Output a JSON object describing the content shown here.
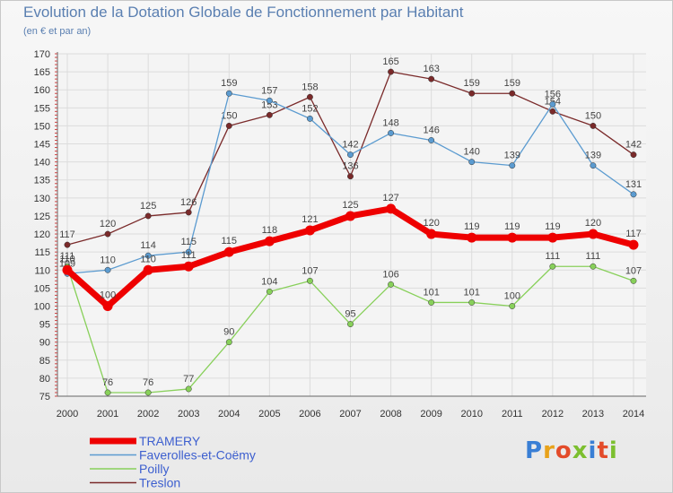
{
  "title": "Evolution de la Dotation Globale de Fonctionnement par Habitant",
  "subtitle": "(en € et par an)",
  "logo": {
    "text": "Proxiti",
    "colors": [
      "#3a7fd5",
      "#e8a21a",
      "#e34b2a",
      "#7cbf2f",
      "#3a7fd5",
      "#e34b2a",
      "#7cbf2f"
    ]
  },
  "chart_data": {
    "type": "line",
    "title": "Evolution de la Dotation Globale de Fonctionnement par Habitant",
    "subtitle": "(en € et par an)",
    "xlabel": "",
    "ylabel": "",
    "x": [
      "2000",
      "2001",
      "2002",
      "2003",
      "2004",
      "2005",
      "2006",
      "2007",
      "2008",
      "2009",
      "2010",
      "2011",
      "2012",
      "2013",
      "2014"
    ],
    "ylim": [
      75,
      170
    ],
    "yticks": [
      75,
      80,
      85,
      90,
      95,
      100,
      105,
      110,
      115,
      120,
      125,
      130,
      135,
      140,
      145,
      150,
      155,
      160,
      165,
      170
    ],
    "grid": true,
    "legend_position": "bottom-left",
    "series": [
      {
        "name": "TRAMERY",
        "color": "#ee0000",
        "values": [
          110,
          100,
          110,
          111,
          115,
          118,
          121,
          125,
          127,
          120,
          119,
          119,
          119,
          120,
          117
        ]
      },
      {
        "name": "Faverolles-et-Coëmy",
        "color": "#5b9bd0",
        "values": [
          109,
          110,
          114,
          115,
          159,
          157,
          152,
          142,
          148,
          146,
          140,
          139,
          156,
          139,
          131
        ]
      },
      {
        "name": "Poilly",
        "color": "#88d05a",
        "values": [
          111,
          76,
          76,
          77,
          90,
          104,
          107,
          95,
          106,
          101,
          101,
          100,
          111,
          111,
          107
        ]
      },
      {
        "name": "Treslon",
        "color": "#7a2a2a",
        "values": [
          117,
          120,
          125,
          126,
          150,
          153,
          158,
          136,
          165,
          163,
          159,
          159,
          154,
          150,
          142
        ]
      }
    ]
  }
}
